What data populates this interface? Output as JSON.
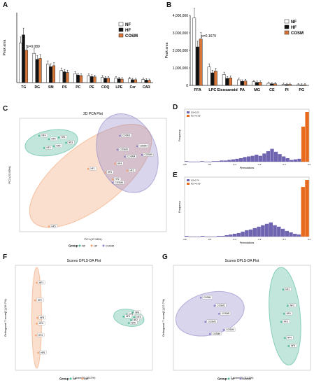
{
  "colors": {
    "NF": "#ffffff",
    "HF": "#111111",
    "COSM": "#d9773a",
    "pca_nf": "#4fb89a",
    "pca_hf": "#f2a272",
    "pca_cosm": "#8e86c8",
    "hist": "#6f64b0",
    "hist_hi": "#e86a1c"
  },
  "panel_labels": {
    "A": "A",
    "B": "B",
    "C": "C",
    "D": "D",
    "E": "E",
    "F": "F",
    "G": "G"
  },
  "chart_data": [
    {
      "id": "A",
      "type": "bar",
      "ylabel": "Peak area",
      "categories": [
        "TG",
        "DG",
        "SM",
        "PS",
        "PC",
        "PE",
        "COQ",
        "LPE",
        "Cer",
        "CAR"
      ],
      "series": [
        {
          "name": "NF",
          "values": [
            1.25,
            0.92,
            0.58,
            0.38,
            0.28,
            0.22,
            0.17,
            0.14,
            0.12,
            0.1
          ]
        },
        {
          "name": "HF",
          "values": [
            1.5,
            0.73,
            0.5,
            0.34,
            0.24,
            0.19,
            0.14,
            0.12,
            0.09,
            0.08
          ]
        },
        {
          "name": "COSM",
          "values": [
            1.02,
            0.76,
            0.53,
            0.32,
            0.22,
            0.18,
            0.14,
            0.11,
            0.09,
            0.07
          ]
        }
      ],
      "ylim": [
        0,
        2.2
      ],
      "annotations": [
        {
          "cat": "TG",
          "text": "p=0.089"
        }
      ],
      "legend": "top-right"
    },
    {
      "id": "B",
      "type": "bar",
      "ylabel": "Peak area",
      "categories": [
        "FFA",
        "LPC",
        "Eicosanoid",
        "PA",
        "MG",
        "CE",
        "PI",
        "PG"
      ],
      "series": [
        {
          "name": "NF",
          "values": [
            3850000,
            1050000,
            620000,
            320000,
            210000,
            120000,
            60000,
            40000
          ]
        },
        {
          "name": "HF",
          "values": [
            2200000,
            720000,
            400000,
            230000,
            170000,
            90000,
            50000,
            30000
          ]
        },
        {
          "name": "COSM",
          "values": [
            2650000,
            820000,
            430000,
            250000,
            180000,
            95000,
            55000,
            35000
          ]
        }
      ],
      "yticks": [
        "0",
        "1,000,000",
        "2,000,000",
        "3,000,000",
        "4,000,000"
      ],
      "ylim": [
        0,
        4000000
      ],
      "annotations": [
        {
          "cat": "FFA",
          "text": "p=0.1679"
        }
      ],
      "legend": "top-right"
    },
    {
      "id": "C",
      "type": "scatter",
      "title": "2D PCA Plot",
      "xlabel": "PC1 (47.96%)",
      "ylabel": "PC2 (23.95%)",
      "legend_title": "Group",
      "groups": [
        "NF",
        "HF",
        "COSM"
      ],
      "points": [
        {
          "g": "NF",
          "label": "NF4",
          "x": -22,
          "y": 15
        },
        {
          "g": "NF",
          "label": "NF5",
          "x": -18,
          "y": 13
        },
        {
          "g": "NF",
          "label": "NF1",
          "x": -14,
          "y": 14
        },
        {
          "g": "NF",
          "label": "NF2",
          "x": -20,
          "y": 8
        },
        {
          "g": "NF",
          "label": "NF6",
          "x": -16,
          "y": 9
        },
        {
          "g": "NF",
          "label": "NF3",
          "x": -11,
          "y": 11
        },
        {
          "g": "HF",
          "label": "HF1",
          "x": -2,
          "y": -4
        },
        {
          "g": "HF",
          "label": "HF6",
          "x": 5,
          "y": -6
        },
        {
          "g": "HF",
          "label": "HF2",
          "x": 8,
          "y": -10
        },
        {
          "g": "HF",
          "label": "HF4",
          "x": 9,
          "y": -1
        },
        {
          "g": "HF",
          "label": "HF3",
          "x": 14,
          "y": -5
        },
        {
          "g": "HF",
          "label": "HF5",
          "x": -18,
          "y": -37
        },
        {
          "g": "COSM",
          "label": "COSM1",
          "x": 11,
          "y": 15
        },
        {
          "g": "COSM",
          "label": "COSM2",
          "x": 18,
          "y": 9
        },
        {
          "g": "COSM",
          "label": "COSM3",
          "x": 10,
          "y": 7
        },
        {
          "g": "COSM",
          "label": "COSM4",
          "x": 13,
          "y": 3
        },
        {
          "g": "COSM",
          "label": "COSM5",
          "x": 20,
          "y": 4
        },
        {
          "g": "COSM",
          "label": "COSM6",
          "x": 8,
          "y": -12
        }
      ]
    },
    {
      "id": "D",
      "type": "bar",
      "ylabel": "Frequency",
      "xlabel": "Permutations",
      "legend_entries": [
        "Q2=0.23",
        "R2Y=0.99"
      ],
      "values": [
        1,
        0,
        0,
        0,
        1,
        0,
        0,
        1,
        1,
        2,
        2,
        3,
        4,
        5,
        6,
        8,
        9,
        10,
        12,
        10,
        14,
        18,
        22,
        17,
        13,
        9,
        6,
        3,
        4,
        5,
        60,
        85
      ],
      "highlight_from": 30,
      "xticks": [
        "-0.8",
        "-0.6",
        "-0.4",
        "-0.2",
        "0.0",
        "0.2"
      ]
    },
    {
      "id": "E",
      "type": "bar",
      "ylabel": "Frequency",
      "xlabel": "Permutations",
      "legend_entries": [
        "Q2=0.74",
        "R2Y=0.99"
      ],
      "values": [
        1,
        0,
        0,
        0,
        1,
        0,
        0,
        0,
        1,
        1,
        2,
        3,
        4,
        5,
        7,
        9,
        10,
        12,
        14,
        16,
        18,
        20,
        16,
        14,
        11,
        8,
        6,
        4,
        3,
        70,
        80
      ],
      "highlight_from": 29,
      "xticks": [
        "-0.8",
        "-0.6",
        "-0.4",
        "-0.2",
        "0.0",
        "0.2"
      ]
    },
    {
      "id": "F",
      "type": "scatter",
      "title": "Scores OPLS-DA Plot",
      "xlabel": "T score[1] (45.2%)",
      "ylabel": "Orthogonal T score[1] (18.7%)",
      "legend_title": "Group",
      "groups": [
        "NF",
        "HF"
      ],
      "points": [
        {
          "g": "HF",
          "label": "HF1",
          "x": -6.2,
          "y": 6
        },
        {
          "g": "HF",
          "label": "HF2",
          "x": -6.4,
          "y": 3
        },
        {
          "g": "HF",
          "label": "HF3",
          "x": -6.1,
          "y": 0
        },
        {
          "g": "HF",
          "label": "HF4",
          "x": -6.3,
          "y": -3
        },
        {
          "g": "HF",
          "label": "HF5",
          "x": -6.0,
          "y": -6
        },
        {
          "g": "HF",
          "label": "HF6",
          "x": -6.2,
          "y": -1
        },
        {
          "g": "NF",
          "label": "NF1",
          "x": 5.6,
          "y": 0.6
        },
        {
          "g": "NF",
          "label": "NF2",
          "x": 6.2,
          "y": -0.4
        },
        {
          "g": "NF",
          "label": "NF3",
          "x": 5.2,
          "y": 0.2
        },
        {
          "g": "NF",
          "label": "NF4",
          "x": 6.6,
          "y": 0.1
        },
        {
          "g": "NF",
          "label": "NF5",
          "x": 5.9,
          "y": -0.9
        },
        {
          "g": "NF",
          "label": "NF6",
          "x": 6.4,
          "y": 0.9
        }
      ]
    },
    {
      "id": "G",
      "type": "scatter",
      "title": "Scores OPLS-DA Plot",
      "xlabel": "T score[1] (31.2%)",
      "ylabel": "Orthogonal T score[1] (22.7%)",
      "legend_title": "Group",
      "groups": [
        "NF",
        "COSM"
      ],
      "points": [
        {
          "g": "COSM",
          "label": "COSM1",
          "x": -5,
          "y": 2
        },
        {
          "g": "COSM",
          "label": "COSM2",
          "x": -3.5,
          "y": 1
        },
        {
          "g": "COSM",
          "label": "COSM3",
          "x": -4.5,
          "y": -1
        },
        {
          "g": "COSM",
          "label": "COSM4",
          "x": -2.5,
          "y": -2
        },
        {
          "g": "COSM",
          "label": "COSM5",
          "x": -3,
          "y": 0
        },
        {
          "g": "COSM",
          "label": "COSM6",
          "x": -4,
          "y": -2.5
        },
        {
          "g": "NF",
          "label": "NF1",
          "x": 4,
          "y": 3
        },
        {
          "g": "NF",
          "label": "NF2",
          "x": 4.5,
          "y": 1
        },
        {
          "g": "NF",
          "label": "NF3",
          "x": 3.8,
          "y": -1
        },
        {
          "g": "NF",
          "label": "NF4",
          "x": 4.2,
          "y": -3
        },
        {
          "g": "NF",
          "label": "NF5",
          "x": 4.6,
          "y": -4
        },
        {
          "g": "NF",
          "label": "NF6",
          "x": 4.1,
          "y": 0
        }
      ]
    }
  ]
}
